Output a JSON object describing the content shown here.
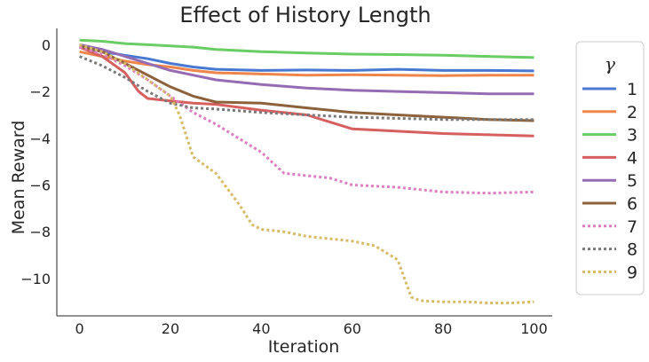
{
  "chart_data": {
    "type": "line",
    "title": "Effect of History Length",
    "xlabel": "Iteration",
    "ylabel": "Mean Reward",
    "xlim": [
      -5,
      104
    ],
    "ylim": [
      -11.6,
      0.7
    ],
    "xticks": [
      0,
      20,
      40,
      60,
      80,
      100
    ],
    "xtick_labels": [
      "0",
      "20",
      "40",
      "60",
      "80",
      "100"
    ],
    "yticks": [
      0,
      -2,
      -4,
      -6,
      -8,
      -10
    ],
    "ytick_labels": [
      "0",
      "−2",
      "−4",
      "−6",
      "−8",
      "−10"
    ],
    "grid": false,
    "legend": {
      "title": "γ",
      "position": "right-outside"
    },
    "series": [
      {
        "name": "1",
        "color": "#4878d0",
        "style": "solid",
        "x": [
          0,
          5,
          10,
          15,
          20,
          25,
          30,
          40,
          50,
          60,
          70,
          80,
          90,
          100
        ],
        "y": [
          -0.1,
          -0.3,
          -0.45,
          -0.6,
          -0.8,
          -0.95,
          -1.05,
          -1.1,
          -1.08,
          -1.1,
          -1.05,
          -1.1,
          -1.1,
          -1.12
        ]
      },
      {
        "name": "2",
        "color": "#ee854a",
        "style": "solid",
        "x": [
          0,
          5,
          10,
          15,
          20,
          25,
          30,
          40,
          50,
          60,
          70,
          80,
          90,
          100
        ],
        "y": [
          -0.3,
          -0.5,
          -0.7,
          -0.85,
          -0.95,
          -1.1,
          -1.2,
          -1.25,
          -1.3,
          -1.28,
          -1.3,
          -1.32,
          -1.3,
          -1.3
        ]
      },
      {
        "name": "3",
        "color": "#6acc64",
        "style": "solid",
        "x": [
          0,
          5,
          10,
          15,
          20,
          25,
          30,
          40,
          50,
          60,
          70,
          80,
          90,
          100
        ],
        "y": [
          0.2,
          0.15,
          0.05,
          0.0,
          -0.05,
          -0.1,
          -0.2,
          -0.3,
          -0.35,
          -0.4,
          -0.42,
          -0.45,
          -0.5,
          -0.55
        ]
      },
      {
        "name": "4",
        "color": "#d65f5f",
        "style": "solid",
        "x": [
          0,
          5,
          10,
          13,
          15,
          20,
          25,
          30,
          40,
          50,
          55,
          60,
          70,
          80,
          90,
          100
        ],
        "y": [
          -0.1,
          -0.5,
          -1.2,
          -2.0,
          -2.3,
          -2.4,
          -2.5,
          -2.55,
          -2.8,
          -3.0,
          -3.3,
          -3.6,
          -3.7,
          -3.8,
          -3.85,
          -3.9
        ]
      },
      {
        "name": "5",
        "color": "#956cb4",
        "style": "solid",
        "x": [
          0,
          5,
          10,
          15,
          20,
          25,
          30,
          40,
          50,
          60,
          70,
          80,
          90,
          100
        ],
        "y": [
          0.0,
          -0.2,
          -0.5,
          -0.8,
          -1.1,
          -1.3,
          -1.5,
          -1.7,
          -1.85,
          -1.95,
          -2.0,
          -2.05,
          -2.1,
          -2.1
        ]
      },
      {
        "name": "6",
        "color": "#8c613c",
        "style": "solid",
        "x": [
          0,
          5,
          10,
          15,
          20,
          25,
          30,
          40,
          50,
          60,
          70,
          80,
          90,
          100
        ],
        "y": [
          -0.05,
          -0.3,
          -0.8,
          -1.3,
          -1.8,
          -2.2,
          -2.45,
          -2.5,
          -2.7,
          -2.9,
          -3.0,
          -3.1,
          -3.2,
          -3.25
        ]
      },
      {
        "name": "7",
        "color": "#dc7ec0",
        "style": "dotted",
        "x": [
          0,
          5,
          10,
          15,
          20,
          25,
          30,
          35,
          40,
          45,
          50,
          55,
          60,
          70,
          80,
          90,
          100
        ],
        "y": [
          -0.1,
          -0.4,
          -0.9,
          -1.5,
          -2.2,
          -2.9,
          -3.4,
          -4.0,
          -4.6,
          -5.5,
          -5.6,
          -5.7,
          -6.0,
          -6.1,
          -6.3,
          -6.35,
          -6.3
        ]
      },
      {
        "name": "8",
        "color": "#797979",
        "style": "dotted",
        "x": [
          0,
          5,
          10,
          15,
          20,
          25,
          30,
          40,
          50,
          60,
          70,
          80,
          90,
          100
        ],
        "y": [
          -0.5,
          -0.9,
          -1.4,
          -2.0,
          -2.5,
          -2.7,
          -2.75,
          -2.9,
          -3.0,
          -3.1,
          -3.15,
          -3.2,
          -3.2,
          -3.2
        ]
      },
      {
        "name": "9",
        "color": "#d5bb67",
        "style": "dotted",
        "x": [
          0,
          5,
          10,
          15,
          20,
          22,
          25,
          30,
          35,
          38,
          40,
          45,
          50,
          55,
          60,
          65,
          70,
          73,
          75,
          80,
          85,
          90,
          95,
          100
        ],
        "y": [
          0.0,
          -0.3,
          -0.8,
          -1.5,
          -2.2,
          -3.0,
          -4.8,
          -5.5,
          -6.8,
          -7.7,
          -7.9,
          -8.0,
          -8.2,
          -8.3,
          -8.4,
          -8.6,
          -9.2,
          -10.8,
          -10.95,
          -11.0,
          -11.0,
          -11.05,
          -11.05,
          -11.0
        ]
      }
    ]
  }
}
